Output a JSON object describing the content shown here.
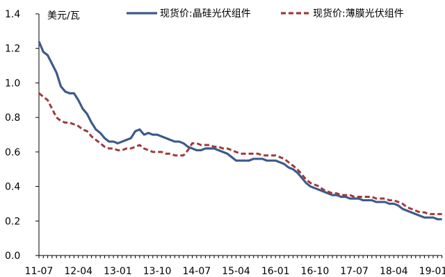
{
  "chart_data": {
    "type": "line",
    "title": "",
    "ylabel": "美元/瓦",
    "xlabel": "",
    "ylim": [
      0,
      1.4
    ],
    "yticks": [
      0.0,
      0.2,
      0.4,
      0.6,
      0.8,
      1.0,
      1.2,
      1.4
    ],
    "ytick_labels": [
      "0.0",
      "0.2",
      "0.4",
      "0.6",
      "0.8",
      "1.0",
      "1.2",
      "1.4"
    ],
    "xlim": [
      "2011-07",
      "2019-03"
    ],
    "xtick_labels": [
      "11-07",
      "12-04",
      "13-01",
      "13-10",
      "14-07",
      "15-04",
      "16-01",
      "16-10",
      "17-07",
      "18-04",
      "19-01"
    ],
    "grid": false,
    "legend": "top",
    "series": [
      {
        "name": "现货价:晶硅光伏组件",
        "color": "#3d5a8a",
        "style": "solid",
        "points": [
          [
            "2011-07",
            1.24
          ],
          [
            "2011-08",
            1.18
          ],
          [
            "2011-09",
            1.16
          ],
          [
            "2011-10",
            1.11
          ],
          [
            "2011-11",
            1.06
          ],
          [
            "2011-12",
            0.98
          ],
          [
            "2012-01",
            0.95
          ],
          [
            "2012-02",
            0.94
          ],
          [
            "2012-03",
            0.94
          ],
          [
            "2012-04",
            0.9
          ],
          [
            "2012-05",
            0.85
          ],
          [
            "2012-06",
            0.82
          ],
          [
            "2012-07",
            0.77
          ],
          [
            "2012-08",
            0.73
          ],
          [
            "2012-09",
            0.71
          ],
          [
            "2012-10",
            0.68
          ],
          [
            "2012-11",
            0.66
          ],
          [
            "2012-12",
            0.66
          ],
          [
            "2013-01",
            0.65
          ],
          [
            "2013-02",
            0.66
          ],
          [
            "2013-03",
            0.67
          ],
          [
            "2013-04",
            0.68
          ],
          [
            "2013-05",
            0.72
          ],
          [
            "2013-06",
            0.73
          ],
          [
            "2013-07",
            0.7
          ],
          [
            "2013-08",
            0.71
          ],
          [
            "2013-09",
            0.7
          ],
          [
            "2013-10",
            0.7
          ],
          [
            "2013-11",
            0.69
          ],
          [
            "2013-12",
            0.68
          ],
          [
            "2014-01",
            0.67
          ],
          [
            "2014-02",
            0.66
          ],
          [
            "2014-03",
            0.66
          ],
          [
            "2014-04",
            0.65
          ],
          [
            "2014-05",
            0.63
          ],
          [
            "2014-06",
            0.62
          ],
          [
            "2014-07",
            0.61
          ],
          [
            "2014-08",
            0.61
          ],
          [
            "2014-09",
            0.62
          ],
          [
            "2014-10",
            0.62
          ],
          [
            "2014-11",
            0.62
          ],
          [
            "2014-12",
            0.61
          ],
          [
            "2015-01",
            0.6
          ],
          [
            "2015-02",
            0.59
          ],
          [
            "2015-03",
            0.57
          ],
          [
            "2015-04",
            0.55
          ],
          [
            "2015-05",
            0.55
          ],
          [
            "2015-06",
            0.55
          ],
          [
            "2015-07",
            0.55
          ],
          [
            "2015-08",
            0.56
          ],
          [
            "2015-09",
            0.56
          ],
          [
            "2015-10",
            0.56
          ],
          [
            "2015-11",
            0.55
          ],
          [
            "2015-12",
            0.55
          ],
          [
            "2016-01",
            0.55
          ],
          [
            "2016-02",
            0.54
          ],
          [
            "2016-03",
            0.53
          ],
          [
            "2016-04",
            0.51
          ],
          [
            "2016-05",
            0.5
          ],
          [
            "2016-06",
            0.48
          ],
          [
            "2016-07",
            0.45
          ],
          [
            "2016-08",
            0.42
          ],
          [
            "2016-09",
            0.4
          ],
          [
            "2016-10",
            0.39
          ],
          [
            "2016-11",
            0.38
          ],
          [
            "2016-12",
            0.37
          ],
          [
            "2017-01",
            0.36
          ],
          [
            "2017-02",
            0.35
          ],
          [
            "2017-03",
            0.35
          ],
          [
            "2017-04",
            0.34
          ],
          [
            "2017-05",
            0.34
          ],
          [
            "2017-06",
            0.33
          ],
          [
            "2017-07",
            0.33
          ],
          [
            "2017-08",
            0.33
          ],
          [
            "2017-09",
            0.32
          ],
          [
            "2017-10",
            0.32
          ],
          [
            "2017-11",
            0.32
          ],
          [
            "2017-12",
            0.31
          ],
          [
            "2018-01",
            0.31
          ],
          [
            "2018-02",
            0.31
          ],
          [
            "2018-03",
            0.3
          ],
          [
            "2018-04",
            0.3
          ],
          [
            "2018-05",
            0.29
          ],
          [
            "2018-06",
            0.27
          ],
          [
            "2018-07",
            0.26
          ],
          [
            "2018-08",
            0.25
          ],
          [
            "2018-09",
            0.24
          ],
          [
            "2018-10",
            0.23
          ],
          [
            "2018-11",
            0.22
          ],
          [
            "2018-12",
            0.22
          ],
          [
            "2019-01",
            0.22
          ],
          [
            "2019-02",
            0.21
          ],
          [
            "2019-03",
            0.21
          ]
        ]
      },
      {
        "name": "现货价:薄膜光伏组件",
        "color": "#9e3a3a",
        "style": "dashed",
        "points": [
          [
            "2011-07",
            0.94
          ],
          [
            "2011-08",
            0.92
          ],
          [
            "2011-09",
            0.9
          ],
          [
            "2011-10",
            0.85
          ],
          [
            "2011-11",
            0.8
          ],
          [
            "2011-12",
            0.78
          ],
          [
            "2012-01",
            0.77
          ],
          [
            "2012-02",
            0.77
          ],
          [
            "2012-03",
            0.76
          ],
          [
            "2012-04",
            0.75
          ],
          [
            "2012-05",
            0.73
          ],
          [
            "2012-06",
            0.72
          ],
          [
            "2012-07",
            0.69
          ],
          [
            "2012-08",
            0.67
          ],
          [
            "2012-09",
            0.65
          ],
          [
            "2012-10",
            0.63
          ],
          [
            "2012-11",
            0.62
          ],
          [
            "2012-12",
            0.62
          ],
          [
            "2013-01",
            0.61
          ],
          [
            "2013-02",
            0.61
          ],
          [
            "2013-03",
            0.62
          ],
          [
            "2013-04",
            0.62
          ],
          [
            "2013-05",
            0.63
          ],
          [
            "2013-06",
            0.64
          ],
          [
            "2013-07",
            0.62
          ],
          [
            "2013-08",
            0.61
          ],
          [
            "2013-09",
            0.6
          ],
          [
            "2013-10",
            0.6
          ],
          [
            "2013-11",
            0.6
          ],
          [
            "2013-12",
            0.59
          ],
          [
            "2014-01",
            0.59
          ],
          [
            "2014-02",
            0.58
          ],
          [
            "2014-03",
            0.58
          ],
          [
            "2014-04",
            0.58
          ],
          [
            "2014-05",
            0.61
          ],
          [
            "2014-06",
            0.65
          ],
          [
            "2014-07",
            0.65
          ],
          [
            "2014-08",
            0.64
          ],
          [
            "2014-09",
            0.64
          ],
          [
            "2014-10",
            0.64
          ],
          [
            "2014-11",
            0.63
          ],
          [
            "2014-12",
            0.63
          ],
          [
            "2015-01",
            0.62
          ],
          [
            "2015-02",
            0.62
          ],
          [
            "2015-03",
            0.61
          ],
          [
            "2015-04",
            0.6
          ],
          [
            "2015-05",
            0.59
          ],
          [
            "2015-06",
            0.59
          ],
          [
            "2015-07",
            0.59
          ],
          [
            "2015-08",
            0.59
          ],
          [
            "2015-09",
            0.59
          ],
          [
            "2015-10",
            0.58
          ],
          [
            "2015-11",
            0.58
          ],
          [
            "2015-12",
            0.58
          ],
          [
            "2016-01",
            0.58
          ],
          [
            "2016-02",
            0.57
          ],
          [
            "2016-03",
            0.56
          ],
          [
            "2016-04",
            0.54
          ],
          [
            "2016-05",
            0.52
          ],
          [
            "2016-06",
            0.5
          ],
          [
            "2016-07",
            0.47
          ],
          [
            "2016-08",
            0.44
          ],
          [
            "2016-09",
            0.42
          ],
          [
            "2016-10",
            0.41
          ],
          [
            "2016-11",
            0.4
          ],
          [
            "2016-12",
            0.38
          ],
          [
            "2017-01",
            0.37
          ],
          [
            "2017-02",
            0.36
          ],
          [
            "2017-03",
            0.36
          ],
          [
            "2017-04",
            0.35
          ],
          [
            "2017-05",
            0.35
          ],
          [
            "2017-06",
            0.35
          ],
          [
            "2017-07",
            0.34
          ],
          [
            "2017-08",
            0.34
          ],
          [
            "2017-09",
            0.34
          ],
          [
            "2017-10",
            0.34
          ],
          [
            "2017-11",
            0.34
          ],
          [
            "2017-12",
            0.33
          ],
          [
            "2018-01",
            0.33
          ],
          [
            "2018-02",
            0.33
          ],
          [
            "2018-03",
            0.32
          ],
          [
            "2018-04",
            0.32
          ],
          [
            "2018-05",
            0.31
          ],
          [
            "2018-06",
            0.3
          ],
          [
            "2018-07",
            0.28
          ],
          [
            "2018-08",
            0.27
          ],
          [
            "2018-09",
            0.26
          ],
          [
            "2018-10",
            0.25
          ],
          [
            "2018-11",
            0.25
          ],
          [
            "2018-12",
            0.24
          ],
          [
            "2019-01",
            0.24
          ],
          [
            "2019-02",
            0.24
          ],
          [
            "2019-03",
            0.24
          ]
        ]
      }
    ]
  }
}
